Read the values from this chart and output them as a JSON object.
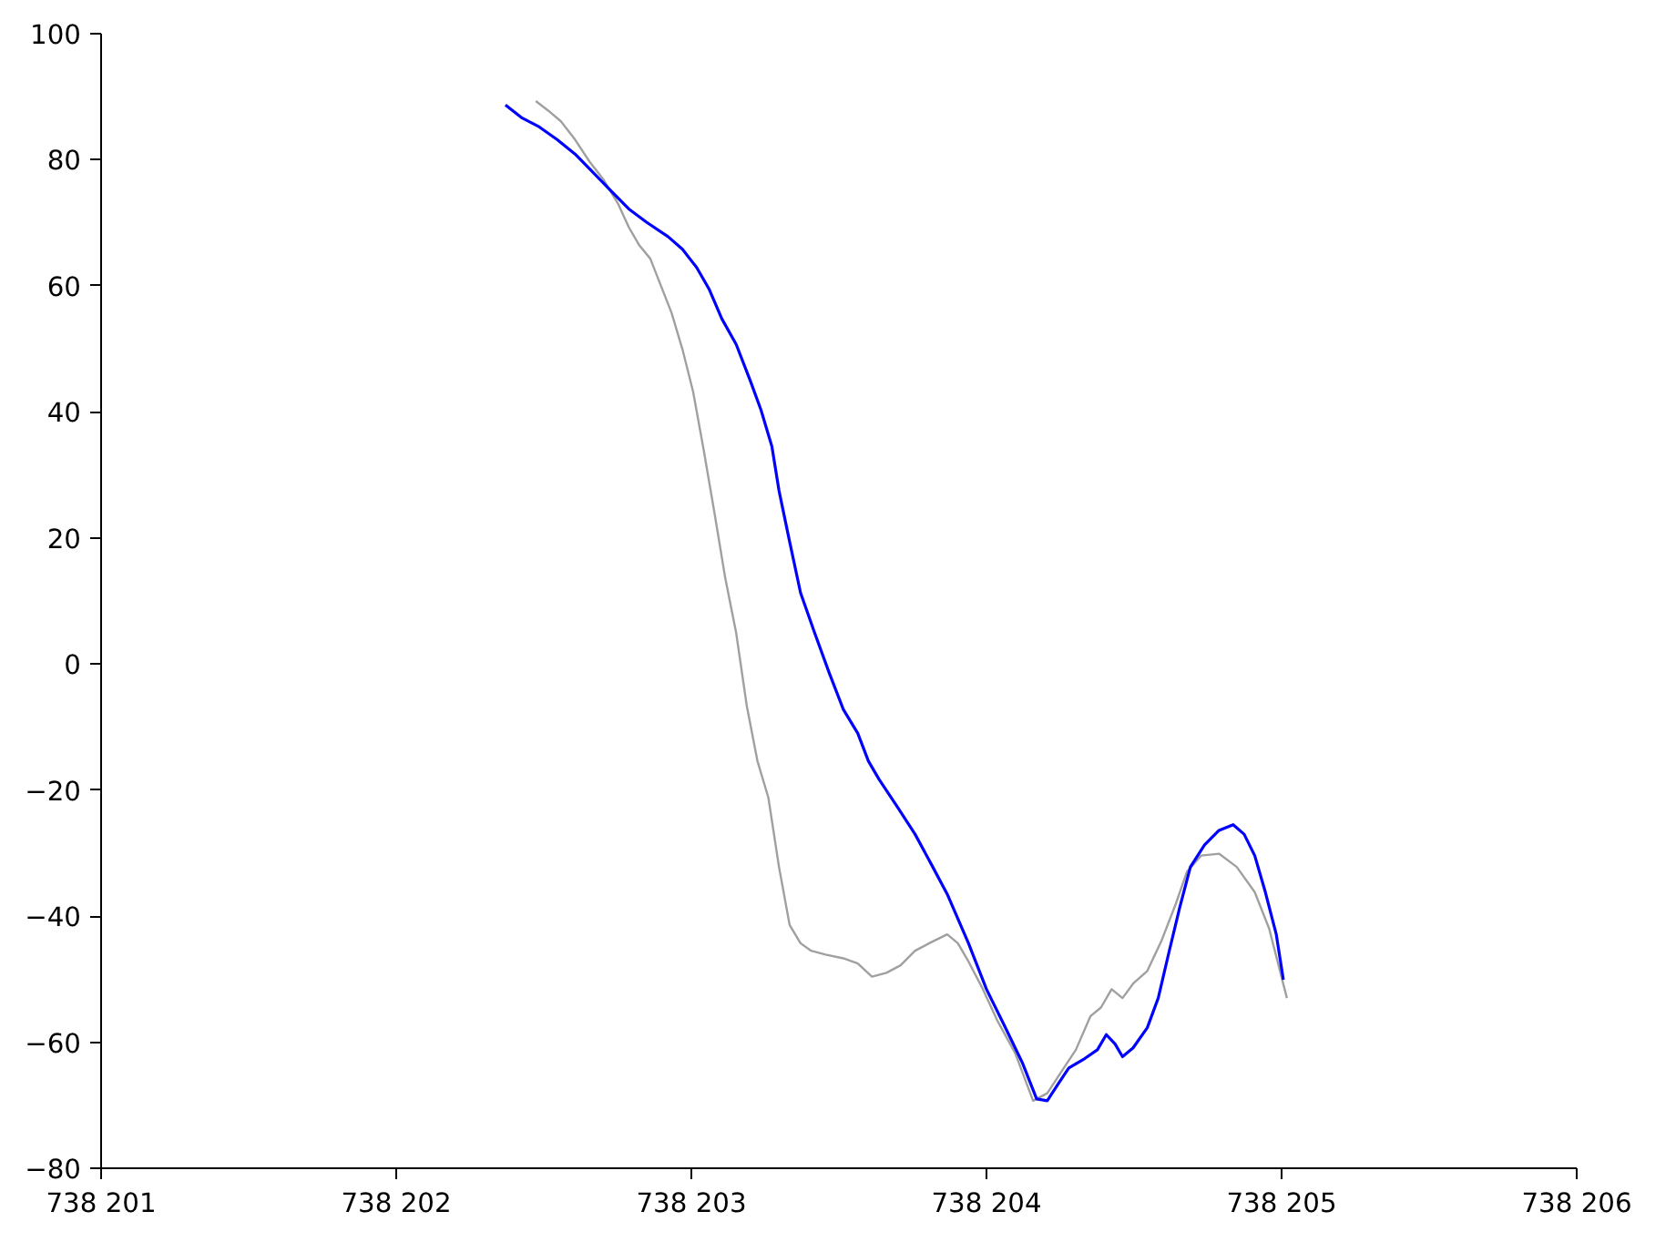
{
  "chart_data": {
    "type": "line",
    "xlim": [
      738201,
      738206
    ],
    "ylim": [
      -80,
      100
    ],
    "xticks": [
      {
        "value": 738201,
        "label": "738 201"
      },
      {
        "value": 738202,
        "label": "738 202"
      },
      {
        "value": 738203,
        "label": "738 203"
      },
      {
        "value": 738204,
        "label": "738 204"
      },
      {
        "value": 738205,
        "label": "738 205"
      },
      {
        "value": 738206,
        "label": "738 206"
      }
    ],
    "yticks": [
      -80,
      -60,
      -40,
      -20,
      0,
      20,
      40,
      60,
      80,
      100
    ],
    "grid": false,
    "marker": "none",
    "line_style": "solid",
    "series": [
      {
        "color": "#a0a0a0",
        "x": [
          738202.473,
          738202.515,
          738202.558,
          738202.606,
          738202.655,
          738202.703,
          738202.752,
          738202.788,
          738202.824,
          738202.861,
          738202.897,
          738202.933,
          738202.97,
          738203.006,
          738203.042,
          738203.079,
          738203.115,
          738203.152,
          738203.188,
          738203.224,
          738203.261,
          738203.297,
          738203.333,
          738203.37,
          738203.406,
          738203.455,
          738203.515,
          738203.564,
          738203.612,
          738203.661,
          738203.709,
          738203.758,
          738203.806,
          738203.867,
          738203.903,
          738203.939,
          738203.988,
          738204.036,
          738204.097,
          738204.158,
          738204.206,
          738204.255,
          738204.303,
          738204.352,
          738204.388,
          738204.424,
          738204.461,
          738204.497,
          738204.545,
          738204.594,
          738204.642,
          738204.679,
          738204.727,
          738204.788,
          738204.848,
          738204.909,
          738204.958,
          738205.018
        ],
        "values": [
          89.3,
          87.8,
          86.1,
          83.2,
          79.7,
          76.8,
          73.0,
          69.3,
          66.4,
          64.3,
          60.0,
          55.7,
          49.9,
          43.2,
          33.9,
          23.8,
          13.6,
          4.9,
          -6.7,
          -15.4,
          -21.2,
          -32.2,
          -41.4,
          -44.3,
          -45.5,
          -46.1,
          -46.7,
          -47.5,
          -49.6,
          -49.0,
          -47.8,
          -45.5,
          -44.3,
          -42.9,
          -44.3,
          -47.2,
          -51.6,
          -56.5,
          -61.7,
          -69.3,
          -68.1,
          -64.6,
          -61.2,
          -55.9,
          -54.5,
          -51.6,
          -53.0,
          -50.7,
          -48.7,
          -43.8,
          -38.0,
          -33.0,
          -30.4,
          -30.1,
          -32.2,
          -36.2,
          -42.0,
          -53.0
        ]
      },
      {
        "color": "#0000ff",
        "x": [
          738202.37,
          738202.424,
          738202.485,
          738202.545,
          738202.606,
          738202.667,
          738202.727,
          738202.788,
          738202.848,
          738202.921,
          738202.97,
          738203.018,
          738203.061,
          738203.103,
          738203.152,
          738203.2,
          738203.236,
          738203.273,
          738203.297,
          738203.333,
          738203.37,
          738203.418,
          738203.467,
          738203.515,
          738203.564,
          738203.6,
          738203.636,
          738203.697,
          738203.758,
          738203.818,
          738203.867,
          738203.939,
          738204.0,
          738204.061,
          738204.121,
          738204.17,
          738204.206,
          738204.242,
          738204.279,
          738204.333,
          738204.376,
          738204.406,
          738204.436,
          738204.461,
          738204.497,
          738204.545,
          738204.582,
          738204.618,
          738204.655,
          738204.691,
          738204.739,
          738204.788,
          738204.836,
          738204.873,
          738204.909,
          738204.945,
          738204.982,
          738205.006
        ],
        "values": [
          88.7,
          86.7,
          85.2,
          83.2,
          80.9,
          78.0,
          75.1,
          72.2,
          70.1,
          67.8,
          65.8,
          62.9,
          59.4,
          54.8,
          50.7,
          44.9,
          40.3,
          34.5,
          27.5,
          19.4,
          11.3,
          4.9,
          -1.4,
          -7.2,
          -11.0,
          -15.4,
          -18.3,
          -22.6,
          -27.0,
          -32.2,
          -36.5,
          -44.3,
          -51.6,
          -57.4,
          -63.2,
          -69.0,
          -69.3,
          -66.7,
          -64.1,
          -62.6,
          -61.2,
          -58.8,
          -60.3,
          -62.3,
          -60.9,
          -57.7,
          -53.0,
          -45.8,
          -38.6,
          -32.2,
          -28.7,
          -26.4,
          -25.5,
          -27.0,
          -30.4,
          -36.2,
          -42.9,
          -50.1
        ]
      }
    ]
  }
}
